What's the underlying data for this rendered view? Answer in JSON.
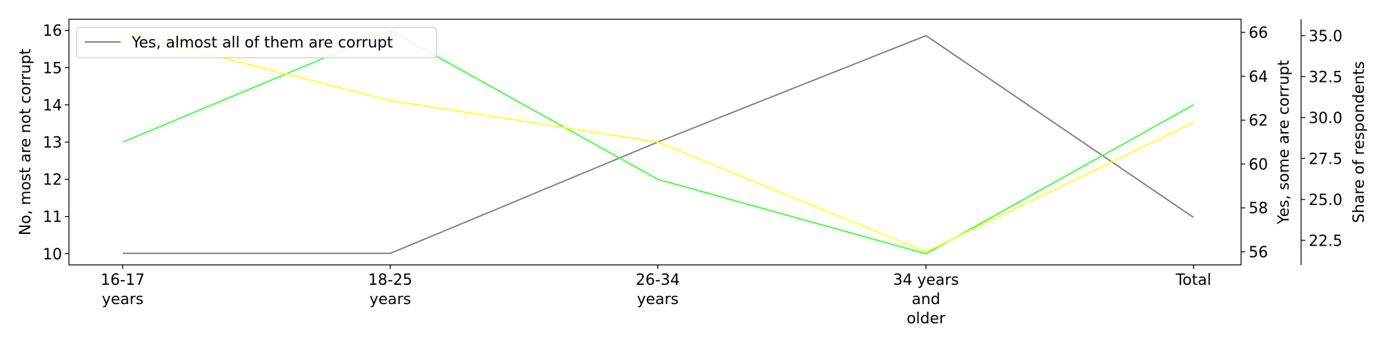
{
  "chart_data": {
    "type": "line",
    "categories": [
      "16-17\nyears",
      "18-25\nyears",
      "26-34\nyears",
      "34 years\nand\nolder",
      "Total"
    ],
    "axes": {
      "left": {
        "label": "No, most are not corrupt",
        "ylim": [
          9.7,
          16.3
        ],
        "ticks": [
          10,
          11,
          12,
          13,
          14,
          15,
          16
        ],
        "decimals": 0
      },
      "right1": {
        "label": "Yes, some are corrupt",
        "ylim": [
          55.4,
          66.6
        ],
        "ticks": [
          56,
          58,
          60,
          62,
          64,
          66
        ],
        "decimals": 0
      },
      "right2": {
        "label": "Share of respondents",
        "ylim": [
          21.0,
          36.0
        ],
        "ticks": [
          22.5,
          25.0,
          27.5,
          30.0,
          32.5,
          35.0
        ],
        "decimals": 1
      }
    },
    "series": [
      {
        "name": "Yes, almost all of them are corrupt",
        "axis": "right2",
        "color": "#808080",
        "values": [
          21.7,
          21.7,
          28.5,
          35.0,
          23.9
        ]
      },
      {
        "name": "",
        "axis": "left",
        "color": "#44ff44",
        "values": [
          13,
          16,
          12,
          10,
          14
        ]
      },
      {
        "name": "",
        "axis": "right1",
        "color": "#ffff33",
        "values": [
          66.0,
          62.9,
          61.0,
          56.0,
          61.9
        ]
      }
    ],
    "legend": {
      "position": "top-left",
      "entries": [
        "Yes, almost all of them are corrupt"
      ]
    },
    "grid": false
  }
}
